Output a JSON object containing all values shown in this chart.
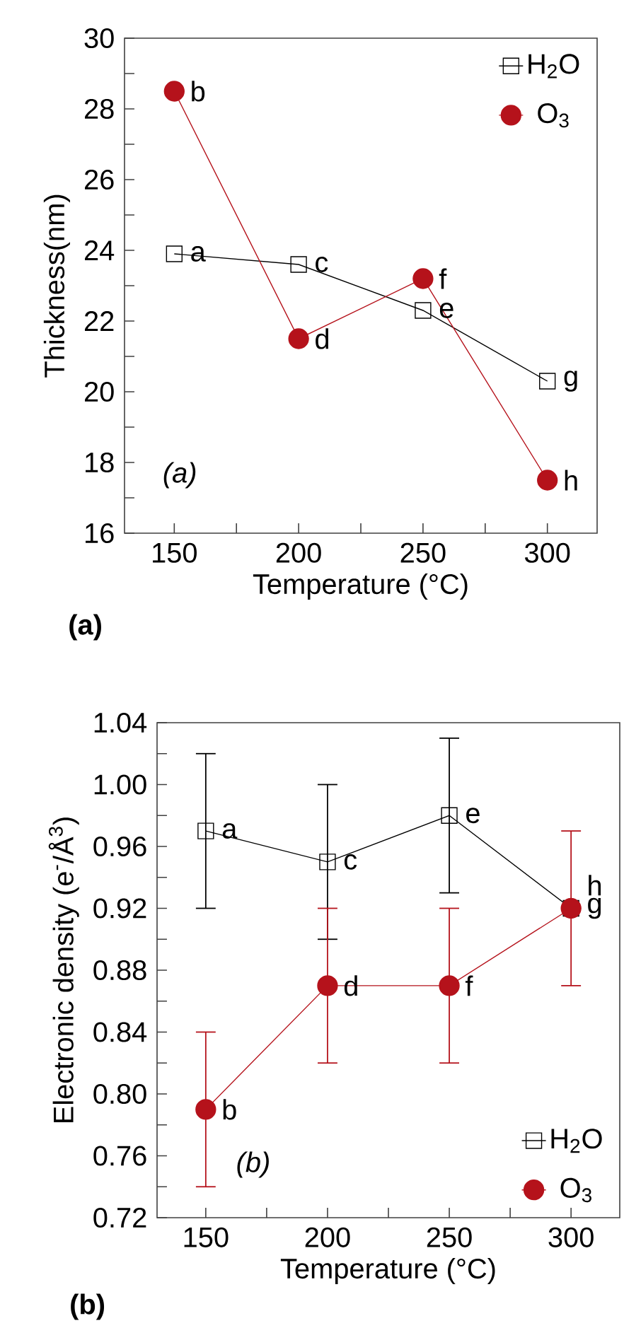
{
  "chart_data": [
    {
      "type": "line",
      "xlabel": "Temperature (°C)",
      "ylabel": "Thickness(nm)",
      "x": [
        150,
        200,
        250,
        300
      ],
      "series": [
        {
          "name": "H$_{2}$O",
          "color": "#000000",
          "marker": "square",
          "values": [
            23.9,
            23.6,
            22.3,
            20.3
          ]
        },
        {
          "name": "O$_{3}$",
          "color": "#b5121b",
          "marker": "circle",
          "values": [
            28.5,
            21.5,
            23.2,
            17.5
          ]
        }
      ],
      "xlim": [
        130,
        320
      ],
      "ylim": [
        16,
        30
      ],
      "xticks": [
        150,
        {
          "value": 175,
          "label": null
        },
        200,
        {
          "value": 225,
          "label": null
        },
        250,
        {
          "value": 275,
          "label": null
        },
        300
      ],
      "yticks": [
        16,
        {
          "value": 17,
          "label": null
        },
        18,
        {
          "value": 19,
          "label": null
        },
        20,
        {
          "value": 21,
          "label": null
        },
        22,
        {
          "value": 23,
          "label": null
        },
        24,
        {
          "value": 25,
          "label": null
        },
        26,
        {
          "value": 27,
          "label": null
        },
        28,
        {
          "value": 29,
          "label": null
        },
        30
      ],
      "legend": "top right",
      "grid": false,
      "line_style": "solid",
      "annotations": [
        {
          "text": "a",
          "x": 150,
          "y": 23.9
        },
        {
          "text": "b",
          "x": 150,
          "y": 28.5
        },
        {
          "text": "c",
          "x": 200,
          "y": 23.6
        },
        {
          "text": "d",
          "x": 200,
          "y": 21.5
        },
        {
          "text": "e",
          "x": 250,
          "y": 22.3
        },
        {
          "text": "f",
          "x": 250,
          "y": 23.2
        },
        {
          "text": "g",
          "x": 300,
          "y": 20.3
        },
        {
          "text": "h",
          "x": 300,
          "y": 17.5
        },
        "*(a)*",
        "**(a)**"
      ]
    },
    {
      "type": "line",
      "xlabel": "Temperature (°C)",
      "ylabel": "Electronic density (e$^{-}$/Å$^{3}$)",
      "x": [
        150,
        200,
        250,
        300
      ],
      "series": [
        {
          "name": "H$_{2}$O",
          "color": "#000000",
          "marker": "square",
          "values": [
            0.97,
            0.95,
            0.98,
            0.92
          ],
          "errors": [
            0.05,
            0.05,
            0.05,
            null
          ]
        },
        {
          "name": "O$_{3}$",
          "color": "#b5121b",
          "marker": "circle",
          "values": [
            0.79,
            0.87,
            0.87,
            0.92
          ],
          "errors": [
            0.05,
            0.05,
            0.05,
            0.05
          ]
        }
      ],
      "xlim": [
        130,
        320
      ],
      "ylim": [
        0.72,
        1.04
      ],
      "xticks": [
        150,
        {
          "value": 175,
          "label": null
        },
        200,
        {
          "value": 225,
          "label": null
        },
        250,
        {
          "value": 275,
          "label": null
        },
        300
      ],
      "yticks": [
        0.72,
        {
          "value": 0.74,
          "label": null
        },
        0.76,
        {
          "value": 0.78,
          "label": null
        },
        {
          "value": 0.8,
          "label": "0.80"
        },
        {
          "value": 0.82,
          "label": null
        },
        0.84,
        {
          "value": 0.86,
          "label": null
        },
        0.88,
        {
          "value": 0.9,
          "label": null
        },
        0.92,
        {
          "value": 0.94,
          "label": null
        },
        0.96,
        {
          "value": 0.98,
          "label": null
        },
        {
          "value": 1.0,
          "label": "1.00"
        },
        {
          "value": 1.02,
          "label": null
        },
        1.04
      ],
      "legend": "bottom right",
      "grid": false,
      "line_style": "solid",
      "annotations": [
        {
          "text": "a",
          "x": 150,
          "y": 0.97
        },
        {
          "text": "b",
          "x": 150,
          "y": 0.79
        },
        {
          "text": "c",
          "x": 200,
          "y": 0.95
        },
        {
          "text": "d",
          "x": 200,
          "y": 0.87
        },
        {
          "text": "e",
          "x": 250,
          "y": 0.98
        },
        {
          "text": "f",
          "x": 250,
          "y": 0.87
        },
        {
          "text": "g",
          "x": 300,
          "y": 0.92
        },
        {
          "text": "h",
          "x": 300,
          "y": 0.92
        },
        "*(b)*",
        "**(b)**"
      ]
    }
  ]
}
